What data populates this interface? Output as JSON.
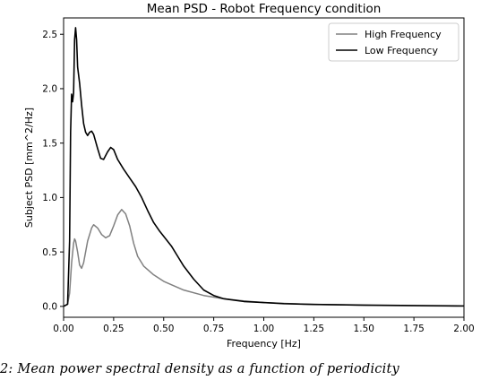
{
  "caption": "2: Mean power spectral density as a function of periodicity",
  "chart_data": {
    "type": "line",
    "title": "Mean PSD - Robot Frequency condition",
    "xlabel": "Frequency [Hz]",
    "ylabel": "Subject PSD [mm^2/Hz]",
    "xlim": [
      0,
      2.0
    ],
    "ylim": [
      -0.1,
      2.65
    ],
    "xticks": [
      0.0,
      0.25,
      0.5,
      0.75,
      1.0,
      1.25,
      1.5,
      1.75,
      2.0
    ],
    "xtick_labels": [
      "0.00",
      "0.25",
      "0.50",
      "0.75",
      "1.00",
      "1.25",
      "1.50",
      "1.75",
      "2.00"
    ],
    "yticks": [
      0.0,
      0.5,
      1.0,
      1.5,
      2.0,
      2.5
    ],
    "ytick_labels": [
      "0.0",
      "0.5",
      "1.0",
      "1.5",
      "2.0",
      "2.5"
    ],
    "grid": false,
    "legend": "top-right",
    "series": [
      {
        "name": "High Frequency",
        "color": "#808080",
        "points": [
          [
            0.0,
            0.0
          ],
          [
            0.02,
            0.02
          ],
          [
            0.03,
            0.12
          ],
          [
            0.04,
            0.4
          ],
          [
            0.05,
            0.58
          ],
          [
            0.055,
            0.62
          ],
          [
            0.06,
            0.6
          ],
          [
            0.07,
            0.5
          ],
          [
            0.08,
            0.38
          ],
          [
            0.09,
            0.35
          ],
          [
            0.1,
            0.4
          ],
          [
            0.12,
            0.6
          ],
          [
            0.14,
            0.72
          ],
          [
            0.15,
            0.75
          ],
          [
            0.17,
            0.72
          ],
          [
            0.19,
            0.66
          ],
          [
            0.21,
            0.63
          ],
          [
            0.23,
            0.65
          ],
          [
            0.25,
            0.74
          ],
          [
            0.27,
            0.84
          ],
          [
            0.29,
            0.89
          ],
          [
            0.31,
            0.85
          ],
          [
            0.33,
            0.74
          ],
          [
            0.35,
            0.58
          ],
          [
            0.37,
            0.46
          ],
          [
            0.4,
            0.37
          ],
          [
            0.45,
            0.29
          ],
          [
            0.5,
            0.23
          ],
          [
            0.6,
            0.15
          ],
          [
            0.7,
            0.1
          ],
          [
            0.8,
            0.07
          ],
          [
            0.9,
            0.05
          ],
          [
            1.0,
            0.035
          ],
          [
            1.2,
            0.02
          ],
          [
            1.5,
            0.01
          ],
          [
            1.75,
            0.005
          ],
          [
            2.0,
            0.003
          ]
        ]
      },
      {
        "name": "Low Frequency",
        "color": "#000000",
        "points": [
          [
            0.0,
            0.0
          ],
          [
            0.02,
            0.02
          ],
          [
            0.03,
            0.6
          ],
          [
            0.035,
            1.6
          ],
          [
            0.04,
            1.95
          ],
          [
            0.045,
            1.88
          ],
          [
            0.05,
            1.96
          ],
          [
            0.055,
            2.45
          ],
          [
            0.06,
            2.56
          ],
          [
            0.065,
            2.45
          ],
          [
            0.07,
            2.2
          ],
          [
            0.08,
            2.05
          ],
          [
            0.09,
            1.85
          ],
          [
            0.1,
            1.68
          ],
          [
            0.11,
            1.6
          ],
          [
            0.12,
            1.57
          ],
          [
            0.13,
            1.6
          ],
          [
            0.14,
            1.61
          ],
          [
            0.15,
            1.58
          ],
          [
            0.17,
            1.45
          ],
          [
            0.185,
            1.36
          ],
          [
            0.2,
            1.35
          ],
          [
            0.22,
            1.42
          ],
          [
            0.235,
            1.46
          ],
          [
            0.25,
            1.44
          ],
          [
            0.27,
            1.35
          ],
          [
            0.3,
            1.26
          ],
          [
            0.33,
            1.18
          ],
          [
            0.36,
            1.1
          ],
          [
            0.39,
            1.0
          ],
          [
            0.42,
            0.88
          ],
          [
            0.45,
            0.77
          ],
          [
            0.48,
            0.69
          ],
          [
            0.51,
            0.62
          ],
          [
            0.54,
            0.55
          ],
          [
            0.57,
            0.46
          ],
          [
            0.6,
            0.37
          ],
          [
            0.65,
            0.25
          ],
          [
            0.7,
            0.15
          ],
          [
            0.75,
            0.1
          ],
          [
            0.8,
            0.07
          ],
          [
            0.9,
            0.045
          ],
          [
            1.0,
            0.035
          ],
          [
            1.1,
            0.025
          ],
          [
            1.25,
            0.018
          ],
          [
            1.5,
            0.012
          ],
          [
            1.75,
            0.008
          ],
          [
            2.0,
            0.004
          ]
        ]
      }
    ]
  }
}
